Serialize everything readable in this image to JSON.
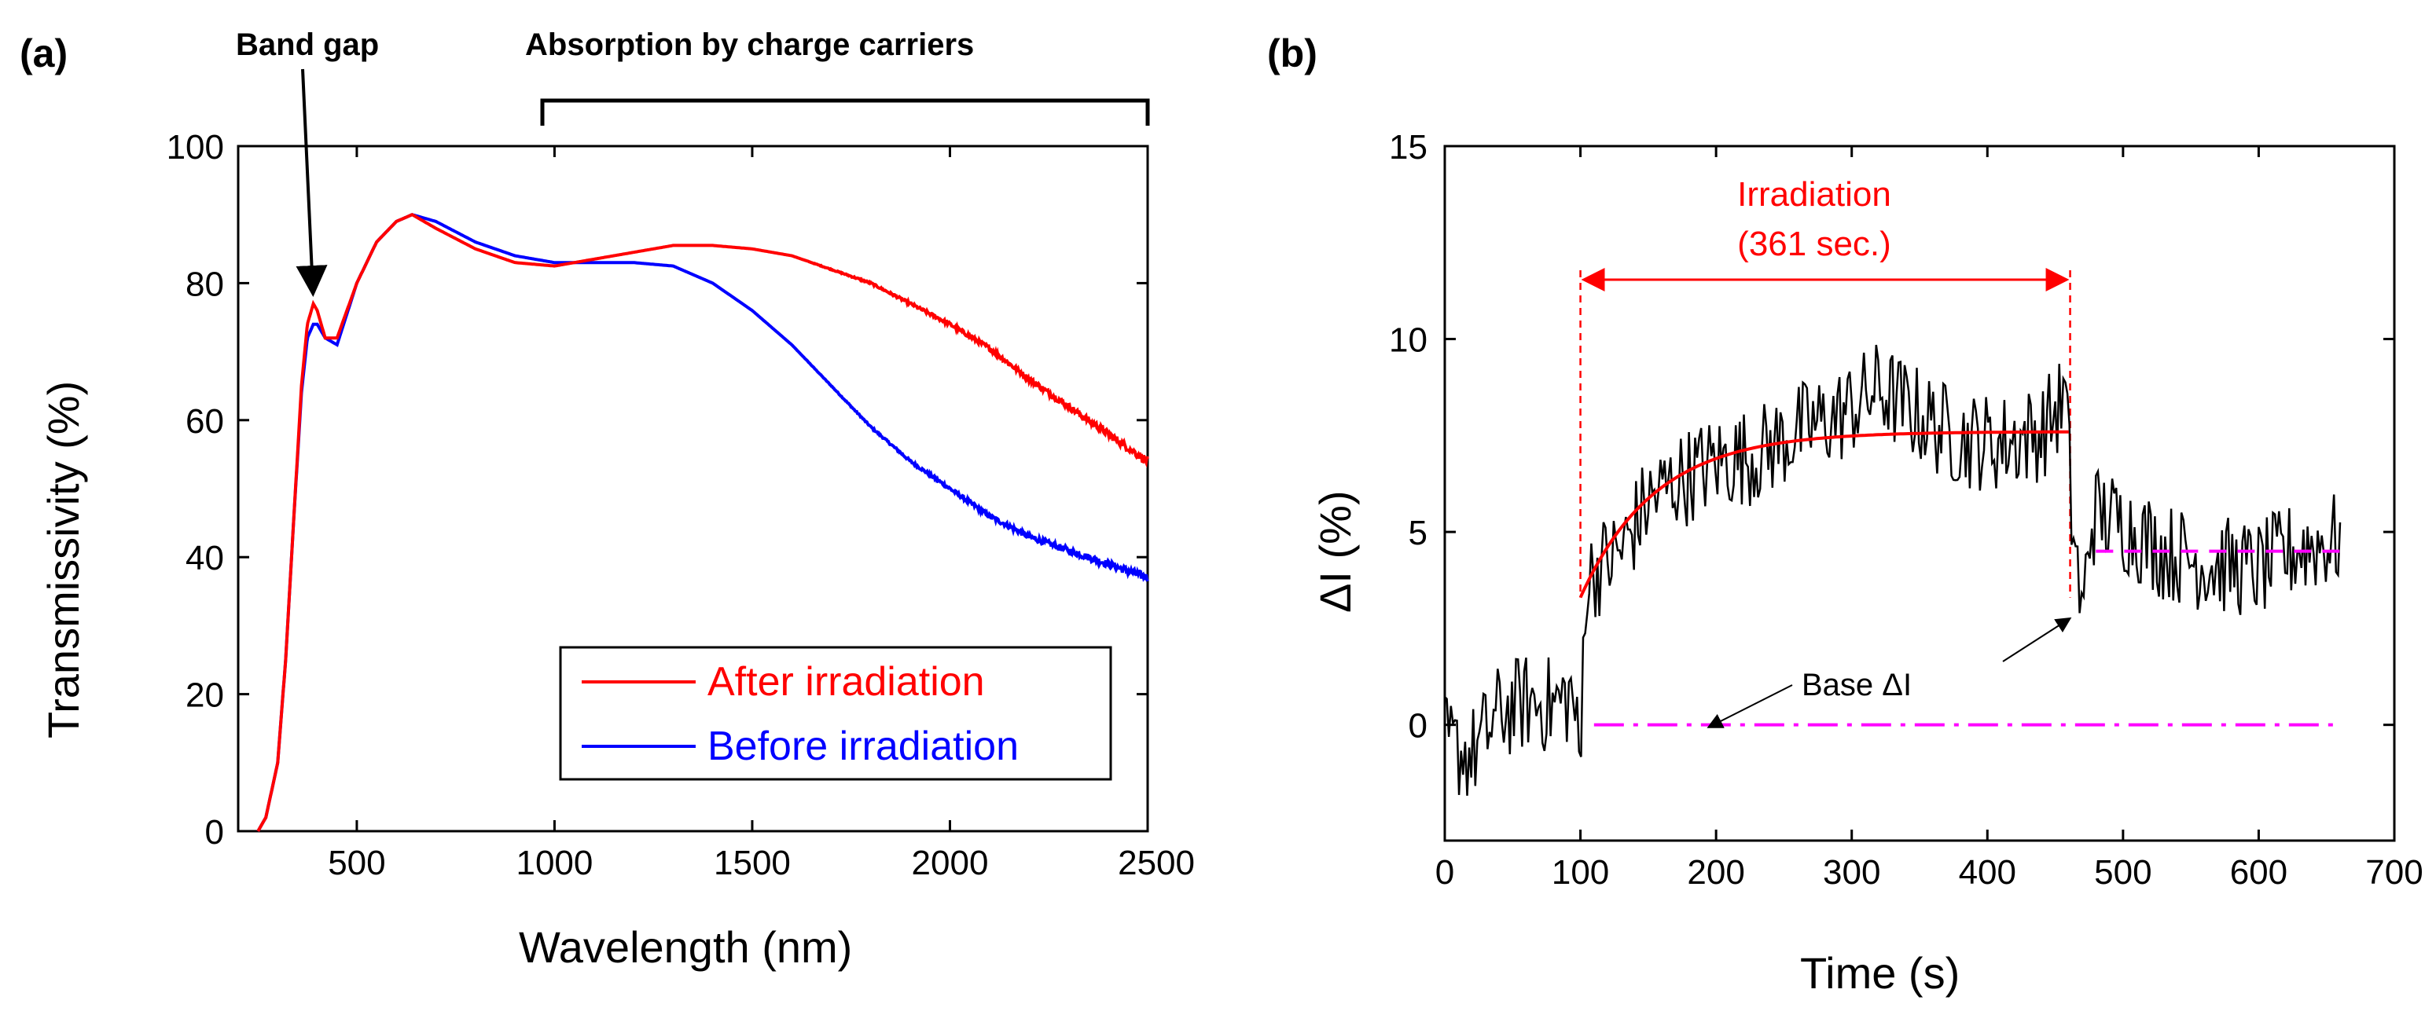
{
  "figure": {
    "colors": {
      "after": "#ff0000",
      "before": "#0000ff",
      "noise": "#000000",
      "fit": "#ff0000",
      "baseline": "#ff00ff",
      "irradiation": "#ff0000"
    }
  },
  "chart_data": [
    {
      "panel": "(a)",
      "type": "line",
      "xlabel": "Wavelength (nm)",
      "ylabel": "Transmissivity (%)",
      "xlim": [
        200,
        2500
      ],
      "ylim": [
        0,
        100
      ],
      "xticks": [
        "500",
        "1000",
        "1500",
        "2000",
        "2500"
      ],
      "yticks": [
        "0",
        "20",
        "40",
        "60",
        "80",
        "100"
      ],
      "annotations": {
        "band_gap": "Band gap",
        "absorption": "Absorption by charge carriers"
      },
      "legend": [
        "After irradiation",
        "Before irradiation"
      ],
      "series": [
        {
          "name": "After irradiation",
          "x": [
            250,
            270,
            300,
            320,
            340,
            360,
            375,
            390,
            400,
            420,
            450,
            500,
            550,
            600,
            640,
            700,
            800,
            900,
            1000,
            1100,
            1200,
            1300,
            1400,
            1500,
            1600,
            1700,
            1800,
            1900,
            2000,
            2100,
            2200,
            2300,
            2400,
            2500
          ],
          "y": [
            0,
            2,
            10,
            25,
            45,
            65,
            74,
            77,
            76,
            72,
            72,
            80,
            86,
            89,
            90,
            88,
            85,
            83,
            82.5,
            83.5,
            84.5,
            85.5,
            85.5,
            85,
            84,
            82,
            80,
            77,
            74,
            70.5,
            66,
            62,
            58,
            54
          ]
        },
        {
          "name": "Before irradiation",
          "x": [
            250,
            270,
            300,
            320,
            340,
            360,
            375,
            390,
            400,
            420,
            450,
            500,
            550,
            600,
            640,
            700,
            800,
            900,
            1000,
            1100,
            1200,
            1300,
            1400,
            1500,
            1600,
            1700,
            1800,
            1900,
            2000,
            2100,
            2200,
            2300,
            2400,
            2500
          ],
          "y": [
            0,
            2,
            10,
            25,
            45,
            64,
            72,
            74,
            74,
            72,
            71,
            80,
            86,
            89,
            90,
            89,
            86,
            84,
            83,
            83,
            83,
            82.5,
            80,
            76,
            71,
            65,
            59,
            54,
            50,
            46,
            43,
            41,
            39,
            37
          ]
        }
      ]
    },
    {
      "panel": "(b)",
      "type": "line",
      "xlabel": "Time (s)",
      "ylabel": "ΔI (%)",
      "xlim": [
        0,
        700
      ],
      "ylim": [
        -3,
        15
      ],
      "xticks": [
        "0",
        "100",
        "200",
        "300",
        "400",
        "500",
        "600",
        "700"
      ],
      "yticks": [
        "0",
        "5",
        "10",
        "15"
      ],
      "annotations": {
        "irradiation_line1": "Irradiation",
        "irradiation_line2": "(361 sec.)",
        "base": "Base ΔI"
      },
      "irradiation_start": 100,
      "irradiation_end": 461,
      "fit": {
        "t0": 100,
        "t1": 461,
        "y0": 3.3,
        "amplitude": 4.3,
        "tau": 55
      },
      "baselines": [
        {
          "x": [
            110,
            660
          ],
          "y": 0
        },
        {
          "x": [
            480,
            660
          ],
          "y": 4.5
        }
      ],
      "series": [
        {
          "name": "ΔI",
          "x": [
            0,
            20,
            40,
            60,
            80,
            95,
            100,
            103,
            110,
            130,
            150,
            170,
            200,
            230,
            260,
            290,
            320,
            350,
            380,
            410,
            440,
            458,
            462,
            466,
            470,
            475,
            480,
            500,
            530,
            560,
            600,
            630,
            660
          ],
          "y": [
            -0.5,
            -0.8,
            0.3,
            0.6,
            0.5,
            0.8,
            -1.5,
            3.5,
            4.0,
            4.5,
            5.8,
            6.3,
            6.8,
            7.0,
            7.6,
            8.0,
            8.7,
            8.0,
            7.4,
            7.3,
            7.6,
            8.5,
            5.5,
            4.3,
            2.5,
            5.0,
            5.5,
            5.2,
            4.5,
            4.2,
            4.0,
            4.6,
            4.8
          ]
        }
      ]
    }
  ]
}
